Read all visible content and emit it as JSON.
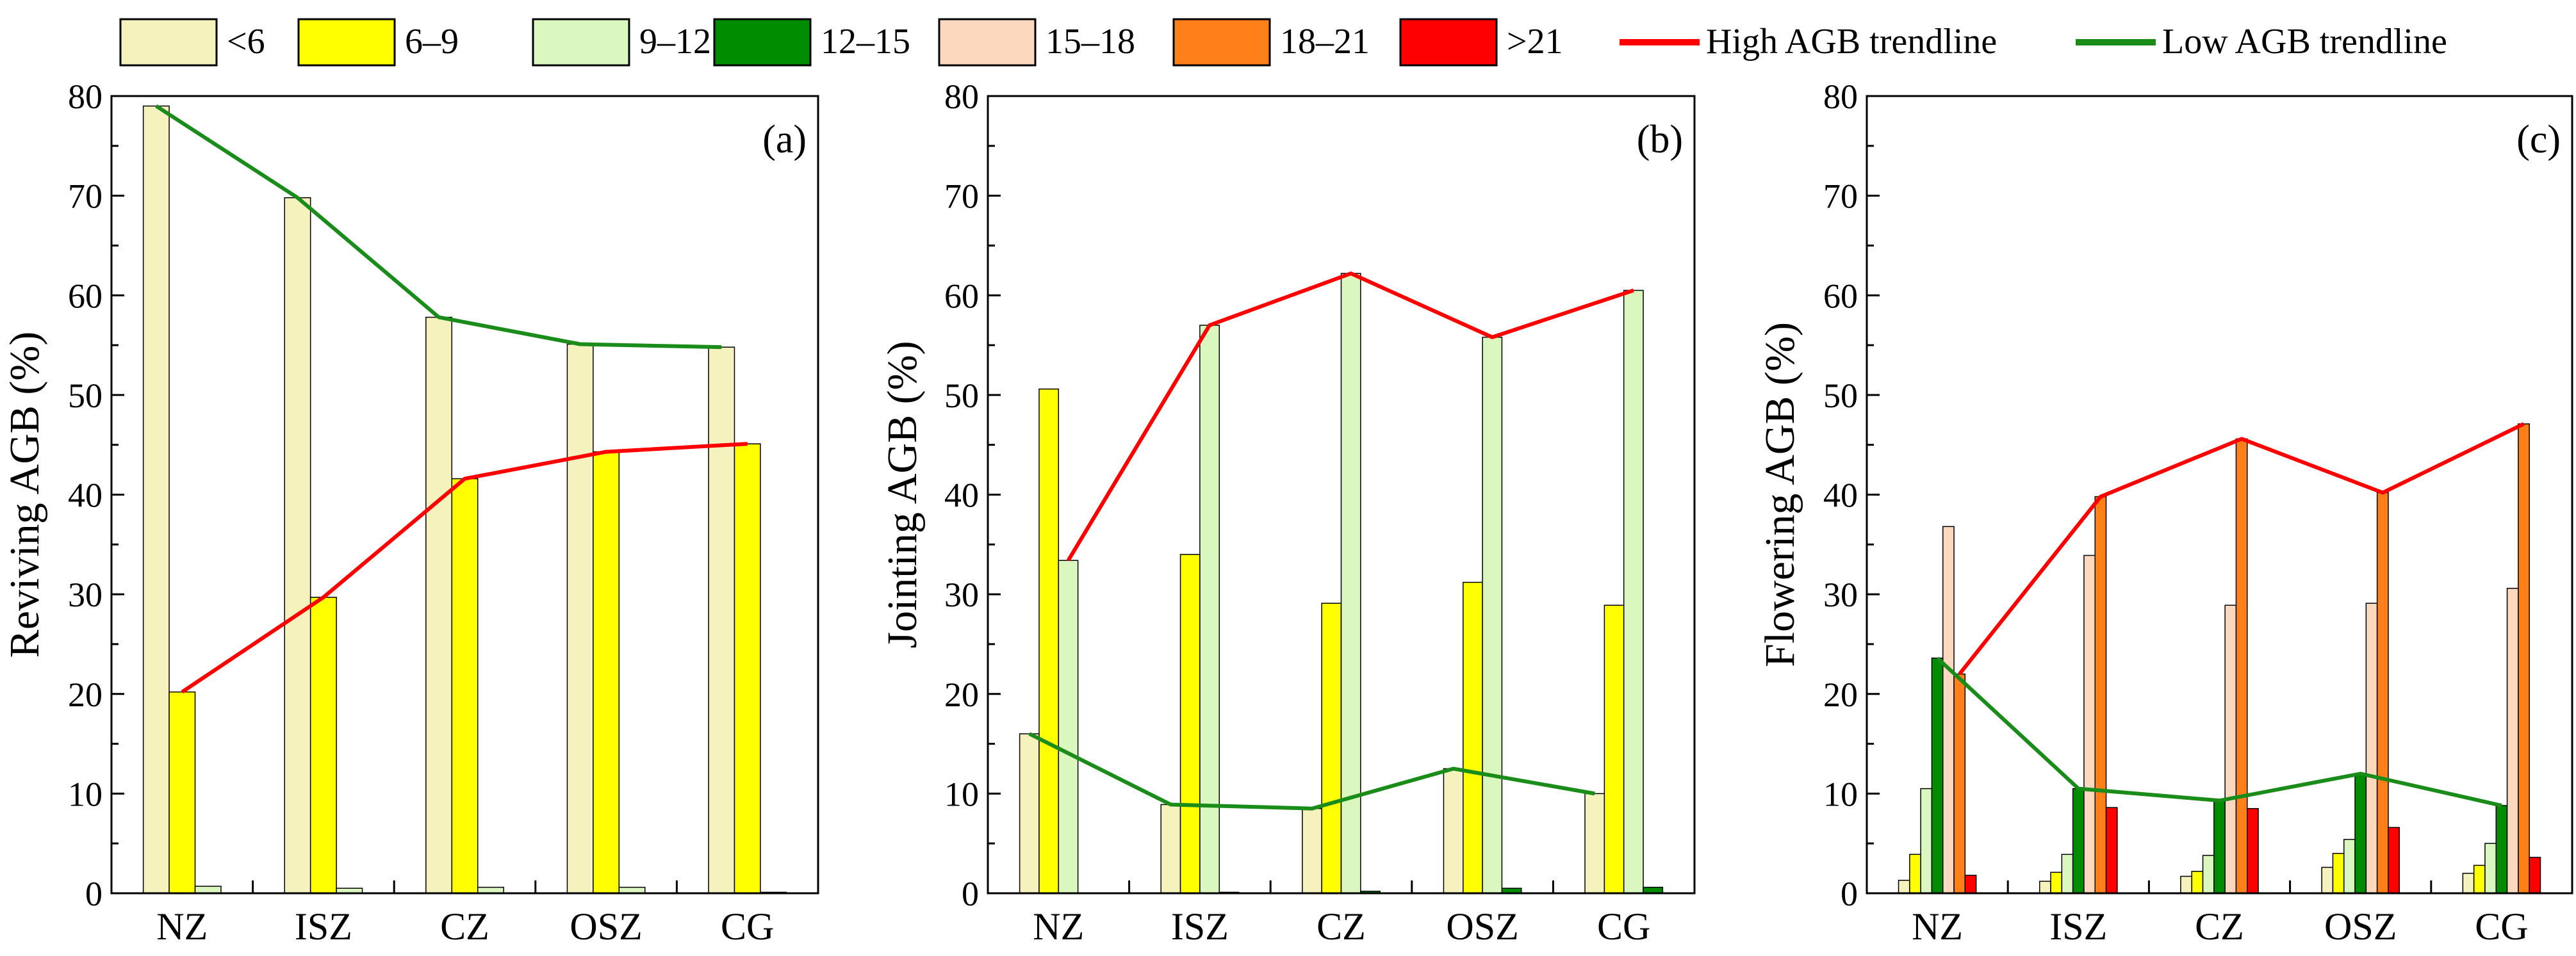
{
  "legend": {
    "items": [
      {
        "label": "<6",
        "color": "#F5F2BD",
        "kind": "box"
      },
      {
        "label": "6–9",
        "color": "#FFFF00",
        "kind": "box"
      },
      {
        "label": "9–12",
        "color": "#D9F7BE",
        "kind": "box"
      },
      {
        "label": "12–15",
        "color": "#008C00",
        "kind": "box"
      },
      {
        "label": "15–18",
        "color": "#FCD9BE",
        "kind": "box"
      },
      {
        "label": "18–21",
        "color": "#FF8019",
        "kind": "box"
      },
      {
        "label": ">21",
        "color": "#FF0000",
        "kind": "box"
      },
      {
        "label": "High AGB trendline",
        "color": "#FF0000",
        "kind": "line"
      },
      {
        "label": "Low AGB trendline",
        "color": "#1A8C1A",
        "kind": "line"
      }
    ]
  },
  "chart_data": [
    {
      "type": "bar",
      "panel_label": "(a)",
      "ylabel": "Reviving AGB (%)",
      "ylim": [
        0,
        80
      ],
      "yticks": [
        "0",
        "10",
        "20",
        "30",
        "40",
        "50",
        "60",
        "70",
        "80"
      ],
      "categories": [
        "NZ",
        "ISZ",
        "CZ",
        "OSZ",
        "CG"
      ],
      "series": [
        {
          "name": "<6",
          "color": "#F5F2BD",
          "values": [
            79.0,
            69.8,
            57.8,
            55.1,
            54.8
          ]
        },
        {
          "name": "6–9",
          "color": "#FFFF00",
          "values": [
            20.2,
            29.7,
            41.6,
            44.3,
            45.1
          ]
        },
        {
          "name": "9–12",
          "color": "#D9F7BE",
          "values": [
            0.7,
            0.5,
            0.6,
            0.6,
            0.1
          ]
        }
      ],
      "trendlines": [
        {
          "name": "High AGB trendline",
          "color": "#FF0000",
          "series_index": 1
        },
        {
          "name": "Low AGB trendline",
          "color": "#1A8C1A",
          "series_index": 0
        }
      ]
    },
    {
      "type": "bar",
      "panel_label": "(b)",
      "ylabel": "Jointing AGB (%)",
      "ylim": [
        0,
        80
      ],
      "yticks": [
        "0",
        "10",
        "20",
        "30",
        "40",
        "50",
        "60",
        "70",
        "80"
      ],
      "categories": [
        "NZ",
        "ISZ",
        "CZ",
        "OSZ",
        "CG"
      ],
      "series": [
        {
          "name": "<6",
          "color": "#F5F2BD",
          "values": [
            16.0,
            8.9,
            8.5,
            12.5,
            10.0
          ]
        },
        {
          "name": "6–9",
          "color": "#FFFF00",
          "values": [
            50.6,
            34.0,
            29.1,
            31.2,
            28.9
          ]
        },
        {
          "name": "9–12",
          "color": "#D9F7BE",
          "values": [
            33.4,
            57.0,
            62.2,
            55.8,
            60.5
          ]
        },
        {
          "name": "12–15",
          "color": "#008C00",
          "values": [
            0,
            0.1,
            0.2,
            0.5,
            0.6
          ]
        }
      ],
      "trendlines": [
        {
          "name": "High AGB trendline",
          "color": "#FF0000",
          "series_index": 2
        },
        {
          "name": "Low AGB trendline",
          "color": "#1A8C1A",
          "series_index": 0
        }
      ]
    },
    {
      "type": "bar",
      "panel_label": "(c)",
      "ylabel": "Flowering AGB (%)",
      "ylim": [
        0,
        80
      ],
      "yticks": [
        "0",
        "10",
        "20",
        "30",
        "40",
        "50",
        "60",
        "70",
        "80"
      ],
      "categories": [
        "NZ",
        "ISZ",
        "CZ",
        "OSZ",
        "CG"
      ],
      "series": [
        {
          "name": "<6",
          "color": "#F5F2BD",
          "values": [
            1.3,
            1.2,
            1.7,
            2.6,
            2.0
          ]
        },
        {
          "name": "6–9",
          "color": "#FFFF00",
          "values": [
            3.9,
            2.1,
            2.2,
            4.0,
            2.8
          ]
        },
        {
          "name": "9–12",
          "color": "#D9F7BE",
          "values": [
            10.5,
            3.9,
            3.8,
            5.4,
            5.0
          ]
        },
        {
          "name": "12–15",
          "color": "#008C00",
          "values": [
            23.6,
            10.5,
            9.3,
            12.0,
            8.8
          ]
        },
        {
          "name": "15–18",
          "color": "#FCD9BE",
          "values": [
            36.8,
            33.9,
            28.9,
            29.1,
            30.6
          ]
        },
        {
          "name": "18–21",
          "color": "#FF8019",
          "values": [
            22.0,
            39.8,
            45.6,
            40.2,
            47.1
          ]
        },
        {
          "name": ">21",
          "color": "#FF0000",
          "values": [
            1.8,
            8.6,
            8.5,
            6.6,
            3.6
          ]
        }
      ],
      "trendlines": [
        {
          "name": "High AGB trendline",
          "color": "#FF0000",
          "series_index": 5
        },
        {
          "name": "Low AGB trendline",
          "color": "#1A8C1A",
          "series_index": 3
        }
      ]
    }
  ]
}
